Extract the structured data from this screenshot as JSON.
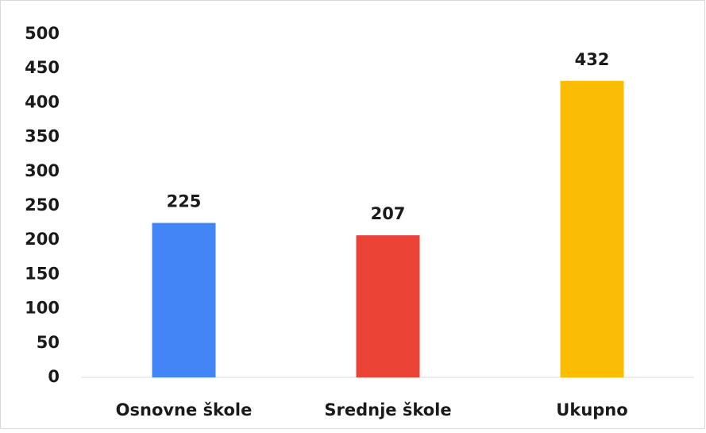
{
  "chart_data": {
    "type": "bar",
    "categories": [
      "Osnovne škole",
      "Srednje škole",
      "Ukupno"
    ],
    "values": [
      225,
      207,
      432
    ],
    "colors": [
      "#4285f4",
      "#ea4335",
      "#fbbc04"
    ],
    "ylim": [
      0,
      500
    ],
    "yticks": [
      0,
      50,
      100,
      150,
      200,
      250,
      300,
      350,
      400,
      450,
      500
    ],
    "grid": false
  }
}
